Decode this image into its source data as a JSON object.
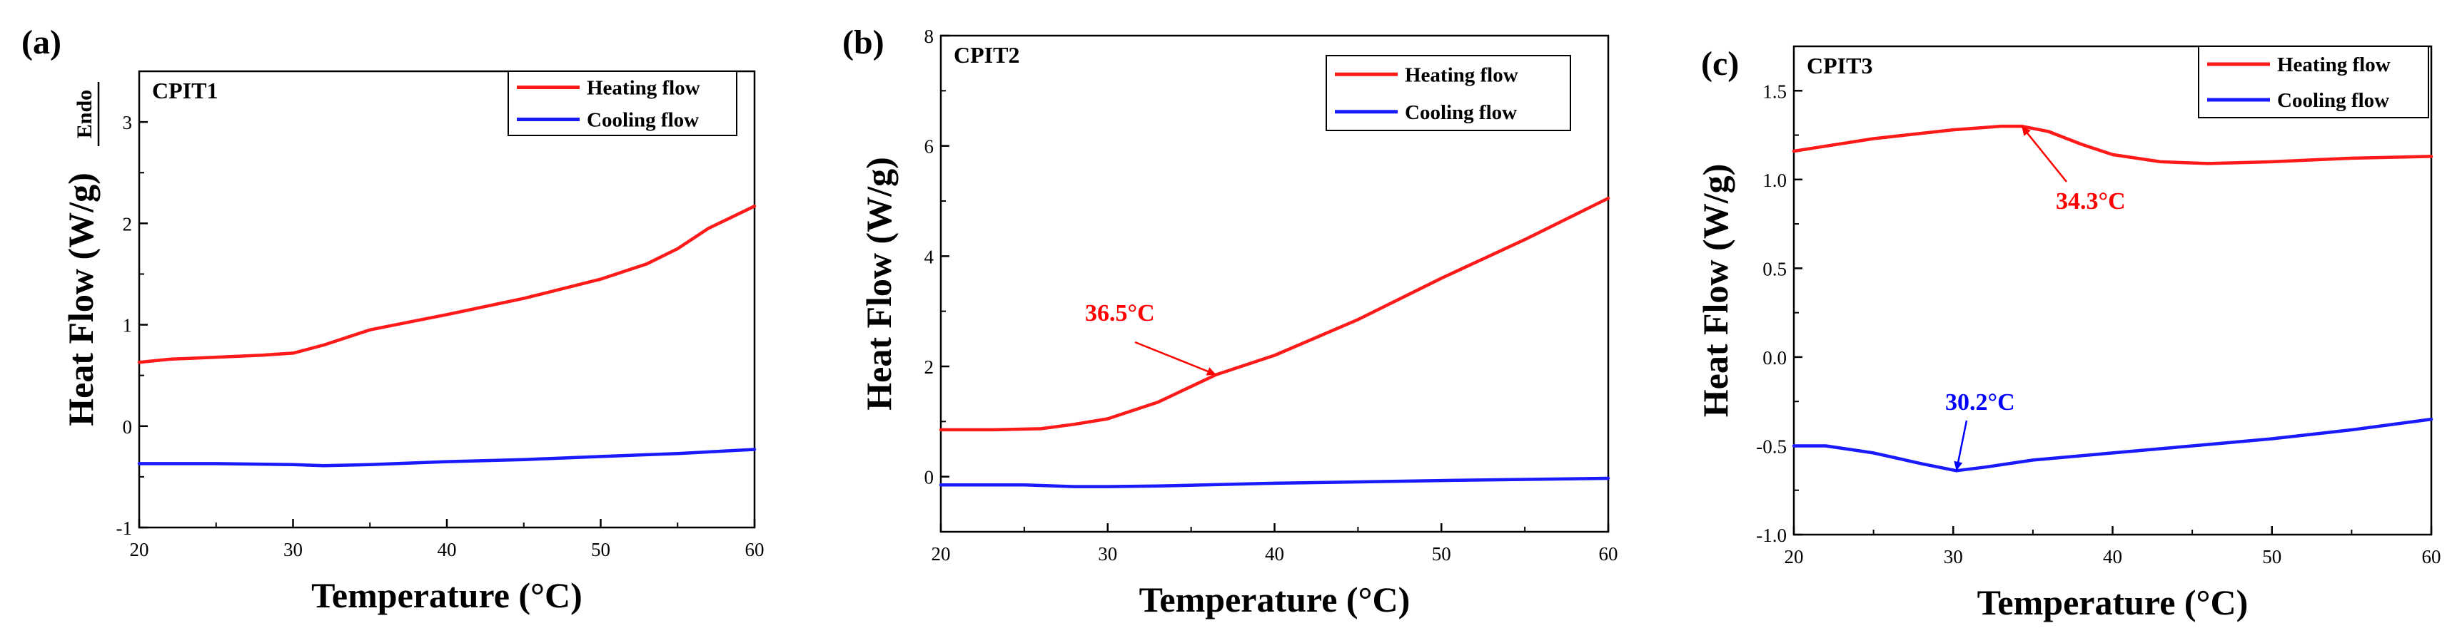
{
  "colors": {
    "heating": "#ff1a1a",
    "cooling": "#1a1aff",
    "axis": "#000000",
    "annot_red": "#ff0000",
    "annot_blue": "#0000ff"
  },
  "chart_data": [
    {
      "type": "line",
      "panel_label": "(a)",
      "title": "CPIT1",
      "xlabel": "Temperature (°C)",
      "ylabel": "Heat Flow (W/g)",
      "endo_label": "Endo",
      "xlim": [
        20,
        60
      ],
      "ylim": [
        -1,
        3.5
      ],
      "xticks": [
        20,
        30,
        40,
        50,
        60
      ],
      "xtick_labels": [
        "20",
        "30",
        "40",
        "50",
        "60"
      ],
      "yticks": [
        -1,
        0,
        1,
        2,
        3
      ],
      "ytick_labels": [
        "-1",
        "0",
        "1",
        "2",
        "3"
      ],
      "legend": [
        "Heating flow",
        "Cooling flow"
      ],
      "series": [
        {
          "name": "Heating flow",
          "color": "heating",
          "x": [
            20,
            22,
            25,
            28,
            30,
            32,
            35,
            40,
            45,
            50,
            53,
            55,
            57,
            60
          ],
          "y": [
            0.63,
            0.66,
            0.68,
            0.7,
            0.72,
            0.8,
            0.95,
            1.1,
            1.26,
            1.45,
            1.6,
            1.75,
            1.95,
            2.17
          ]
        },
        {
          "name": "Cooling flow",
          "color": "cooling",
          "x": [
            20,
            25,
            30,
            32,
            35,
            40,
            45,
            50,
            55,
            60
          ],
          "y": [
            -0.37,
            -0.37,
            -0.38,
            -0.39,
            -0.38,
            -0.35,
            -0.33,
            -0.3,
            -0.27,
            -0.23
          ]
        }
      ],
      "annotations": []
    },
    {
      "type": "line",
      "panel_label": "(b)",
      "title": "CPIT2",
      "xlabel": "Temperature (°C)",
      "ylabel": "Heat Flow (W/g)",
      "xlim": [
        20,
        60
      ],
      "ylim": [
        -1,
        8
      ],
      "xticks": [
        20,
        30,
        40,
        50,
        60
      ],
      "xtick_labels": [
        "20",
        "30",
        "40",
        "50",
        "60"
      ],
      "yticks": [
        0,
        2,
        4,
        6,
        8
      ],
      "ytick_labels": [
        "0",
        "2",
        "4",
        "6",
        "8"
      ],
      "legend": [
        "Heating flow",
        "Cooling flow"
      ],
      "series": [
        {
          "name": "Heating flow",
          "color": "heating",
          "x": [
            20,
            23,
            26,
            28,
            30,
            33,
            36.5,
            40,
            45,
            50,
            55,
            60
          ],
          "y": [
            0.85,
            0.85,
            0.87,
            0.95,
            1.05,
            1.35,
            1.85,
            2.2,
            2.85,
            3.6,
            4.3,
            5.05
          ]
        },
        {
          "name": "Cooling flow",
          "color": "cooling",
          "x": [
            20,
            25,
            28,
            30,
            33,
            40,
            50,
            60
          ],
          "y": [
            -0.15,
            -0.15,
            -0.18,
            -0.18,
            -0.17,
            -0.12,
            -0.07,
            -0.03
          ]
        }
      ],
      "annotations": [
        {
          "text": "36.5°C",
          "color": "annot_red",
          "x": 36.5,
          "y": 1.85
        }
      ]
    },
    {
      "type": "line",
      "panel_label": "(c)",
      "title": "CPIT3",
      "xlabel": "Temperature (°C)",
      "ylabel": "Heat Flow (W/g)",
      "xlim": [
        20,
        60
      ],
      "ylim": [
        -1.0,
        1.75
      ],
      "xticks": [
        20,
        30,
        40,
        50,
        60
      ],
      "xtick_labels": [
        "20",
        "30",
        "40",
        "50",
        "60"
      ],
      "yticks": [
        -1.0,
        -0.5,
        0.0,
        0.5,
        1.0,
        1.5
      ],
      "ytick_labels": [
        "-1.0",
        "-0.5",
        "0.0",
        "0.5",
        "1.0",
        "1.5"
      ],
      "legend": [
        "Heating flow",
        "Cooling flow"
      ],
      "series": [
        {
          "name": "Heating flow",
          "color": "heating",
          "x": [
            20,
            25,
            30,
            33,
            34.3,
            36,
            38,
            40,
            43,
            46,
            50,
            55,
            60
          ],
          "y": [
            1.16,
            1.23,
            1.28,
            1.3,
            1.3,
            1.27,
            1.2,
            1.14,
            1.1,
            1.09,
            1.1,
            1.12,
            1.13
          ]
        },
        {
          "name": "Cooling flow",
          "color": "cooling",
          "x": [
            20,
            22,
            25,
            28,
            30.2,
            32,
            35,
            40,
            45,
            50,
            55,
            60
          ],
          "y": [
            -0.5,
            -0.5,
            -0.54,
            -0.6,
            -0.64,
            -0.62,
            -0.58,
            -0.54,
            -0.5,
            -0.46,
            -0.41,
            -0.35
          ]
        }
      ],
      "annotations": [
        {
          "text": "34.3°C",
          "color": "annot_red",
          "x": 34.3,
          "y": 1.3
        },
        {
          "text": "30.2°C",
          "color": "annot_blue",
          "x": 30.2,
          "y": -0.64
        }
      ]
    }
  ]
}
